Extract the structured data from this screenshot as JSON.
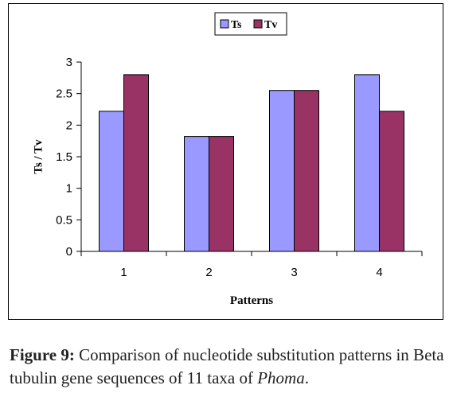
{
  "chart_data": {
    "type": "bar",
    "categories": [
      "1",
      "2",
      "3",
      "4"
    ],
    "series": [
      {
        "name": "Ts",
        "color": "#9999FF",
        "values": [
          2.22,
          1.82,
          2.55,
          2.8
        ]
      },
      {
        "name": "Tv",
        "color": "#993366",
        "values": [
          2.8,
          1.82,
          2.55,
          2.22
        ]
      }
    ],
    "xlabel": "Patterns",
    "ylabel": "Ts / Tv",
    "ylim": [
      0,
      3
    ],
    "yticks": [
      "0",
      "0.5",
      "1",
      "1.5",
      "2",
      "2.5",
      "3"
    ],
    "grid": false,
    "legend_position": "top"
  },
  "caption": {
    "label": "Figure 9:",
    "text_start": " Comparison of nucleotide substitution patterns in Beta tubulin gene sequences of 11 taxa of ",
    "genus": "Phoma",
    "text_end": "."
  }
}
